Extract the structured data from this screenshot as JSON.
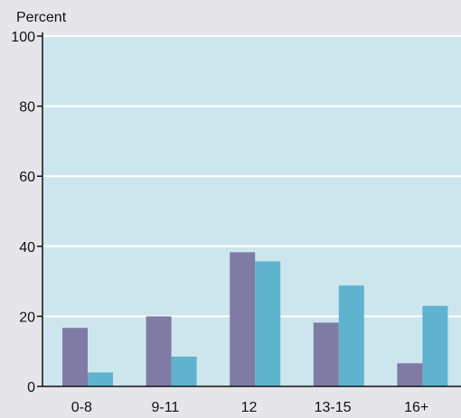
{
  "chart_data": {
    "type": "bar",
    "ylabel": "Percent",
    "ylim": [
      0,
      100
    ],
    "yticks": [
      0,
      20,
      40,
      60,
      80,
      100
    ],
    "grid": true,
    "categories": [
      "0-8",
      "9-11",
      "12",
      "13-15",
      "16+"
    ],
    "series": [
      {
        "values": [
          16.7,
          20.0,
          38.3,
          18.2,
          6.6
        ],
        "color": "#7f7ba5"
      },
      {
        "values": [
          4.0,
          8.5,
          35.7,
          28.8,
          23.0
        ],
        "color": "#5fb3cf"
      }
    ],
    "plot_background": "#cde6ee",
    "grid_color": "#ffffff",
    "axis_color": "#111111"
  }
}
